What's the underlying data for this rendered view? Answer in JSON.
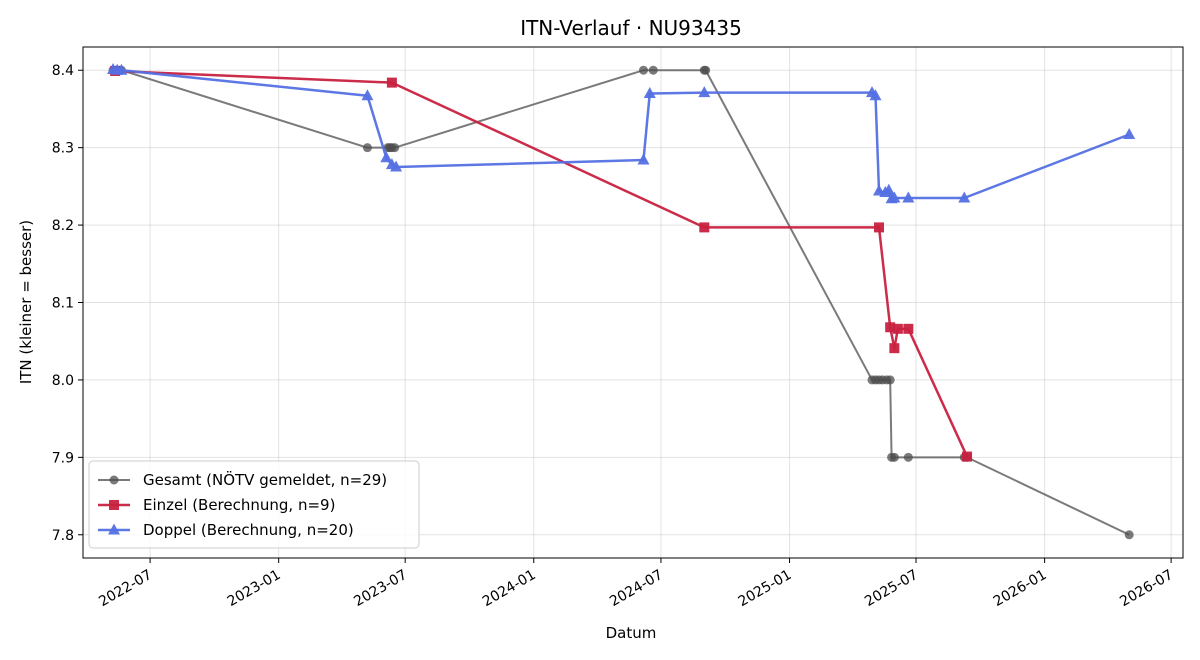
{
  "chart_data": {
    "type": "line",
    "title": "ITN-Verlauf · NU93435",
    "xlabel": "Datum",
    "ylabel": "ITN  (kleiner = besser)",
    "xlim": [
      "2022-03-27",
      "2026-07-18"
    ],
    "ylim": [
      7.77,
      8.43
    ],
    "x_ticks": [
      "2022-07-01",
      "2023-01-01",
      "2023-07-01",
      "2024-01-01",
      "2024-07-01",
      "2025-01-01",
      "2025-07-01",
      "2026-01-01",
      "2026-07-01"
    ],
    "x_tick_labels": [
      "2022-07",
      "2023-01",
      "2023-07",
      "2024-01",
      "2024-07",
      "2025-01",
      "2025-07",
      "2026-01",
      "2026-07"
    ],
    "y_ticks": [
      7.8,
      7.9,
      8.0,
      8.1,
      8.2,
      8.3,
      8.4
    ],
    "y_tick_labels": [
      "7.8",
      "7.9",
      "8.0",
      "8.1",
      "8.2",
      "8.3",
      "8.4"
    ],
    "grid": true,
    "legend_position": "lower-left",
    "series": [
      {
        "name": "Gesamt (NÖTV gemeldet, n=29)",
        "color": "#4d4d4d",
        "marker": "circle",
        "x": [
          "2022-05-09",
          "2022-05-12",
          "2022-05-15",
          "2022-05-18",
          "2022-05-21",
          "2023-05-08",
          "2023-06-06",
          "2023-06-09",
          "2023-06-12",
          "2023-06-16",
          "2024-06-06",
          "2024-06-20",
          "2024-09-01",
          "2024-09-03",
          "2025-04-29",
          "2025-05-04",
          "2025-05-09",
          "2025-05-14",
          "2025-05-20",
          "2025-05-25",
          "2025-05-27",
          "2025-05-31",
          "2025-06-20",
          "2025-09-08",
          "2025-09-12",
          "2026-05-02"
        ],
        "y": [
          8.4,
          8.4,
          8.4,
          8.4,
          8.4,
          8.3,
          8.3,
          8.3,
          8.3,
          8.3,
          8.4,
          8.4,
          8.4,
          8.4,
          8.0,
          8.0,
          8.0,
          8.0,
          8.0,
          8.0,
          7.9,
          7.9,
          7.9,
          7.9,
          7.9,
          7.8
        ]
      },
      {
        "name": "Einzel (Berechnung, n=9)",
        "color": "#c8213f",
        "marker": "square",
        "x": [
          "2022-05-12",
          "2023-06-12",
          "2024-09-01",
          "2025-05-09",
          "2025-05-25",
          "2025-05-31",
          "2025-06-05",
          "2025-06-20",
          "2025-09-12"
        ],
        "y": [
          8.399,
          8.384,
          8.197,
          8.197,
          8.068,
          8.041,
          8.066,
          8.066,
          7.901
        ]
      },
      {
        "name": "Doppel (Berechnung, n=20)",
        "color": "#5470e3",
        "marker": "triangle",
        "x": [
          "2022-05-09",
          "2022-05-15",
          "2022-05-21",
          "2023-05-08",
          "2023-06-04",
          "2023-06-12",
          "2023-06-18",
          "2024-06-06",
          "2024-06-15",
          "2024-09-01",
          "2025-04-29",
          "2025-05-04",
          "2025-05-09",
          "2025-05-18",
          "2025-05-23",
          "2025-05-27",
          "2025-05-31",
          "2025-06-20",
          "2025-09-08",
          "2026-05-02"
        ],
        "y": [
          8.401,
          8.4,
          8.4,
          8.367,
          8.287,
          8.278,
          8.275,
          8.284,
          8.37,
          8.371,
          8.371,
          8.367,
          8.244,
          8.242,
          8.245,
          8.234,
          8.235,
          8.235,
          8.235,
          8.317
        ]
      }
    ]
  }
}
